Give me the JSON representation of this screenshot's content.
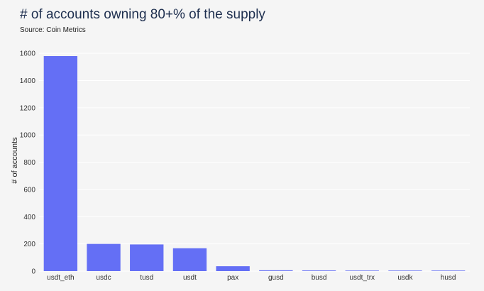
{
  "header": {
    "title": "# of accounts owning 80+% of the supply",
    "subtitle": "Source: Coin Metrics"
  },
  "colors": {
    "bar": "#646ff5",
    "grid": "#ffffff",
    "background": "#f5f5f5"
  },
  "chart_data": {
    "type": "bar",
    "title": "# of accounts owning 80+% of the supply",
    "subtitle": "Source: Coin Metrics",
    "xlabel": "",
    "ylabel": "# of accounts",
    "categories": [
      "usdt_eth",
      "usdc",
      "tusd",
      "usdt",
      "pax",
      "gusd",
      "busd",
      "usdt_trx",
      "usdk",
      "husd"
    ],
    "values": [
      1580,
      200,
      196,
      168,
      36,
      6,
      5,
      4,
      2,
      1
    ],
    "ylim": [
      0,
      1700
    ],
    "yticks": [
      0,
      200,
      400,
      600,
      800,
      1000,
      1200,
      1400,
      1600
    ],
    "grid": true,
    "legend": "none"
  }
}
